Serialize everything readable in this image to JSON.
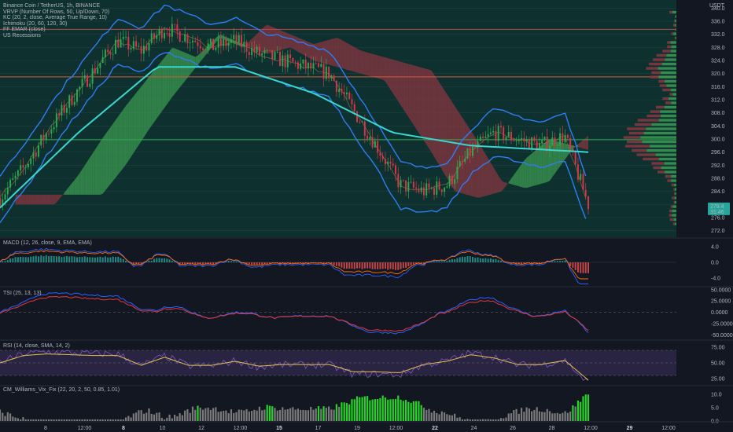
{
  "chart_data": {
    "type": "line",
    "title": "Binance Coin / TetherUS, 1h, BINANCE",
    "currency": "USDT",
    "legend": [
      "VRVP (Number Of Rows, 50, Up/Down, 70)",
      "KC (20, 2, close, Average True Range, 10)",
      "Ichimoku (20, 60, 120, 30)",
      "FF EMAR (close)",
      "US Recessions"
    ],
    "ylim": [
      270,
      342
    ],
    "y_ticks": [
      "340.0",
      "336.0",
      "332.0",
      "328.0",
      "324.0",
      "320.0",
      "316.0",
      "312.0",
      "308.0",
      "304.0",
      "300.0",
      "296.0",
      "292.0",
      "288.0",
      "284.0",
      "280.0",
      "276.0",
      "272.0"
    ],
    "x_ticks": [
      {
        "label": "8",
        "major": false
      },
      {
        "label": "12:00",
        "major": false
      },
      {
        "label": "8",
        "major": true
      },
      {
        "label": "10",
        "major": false
      },
      {
        "label": "12",
        "major": false
      },
      {
        "label": "12:00",
        "major": false
      },
      {
        "label": "15",
        "major": true
      },
      {
        "label": "17",
        "major": false
      },
      {
        "label": "19",
        "major": false
      },
      {
        "label": "12:00",
        "major": false
      },
      {
        "label": "22",
        "major": true
      },
      {
        "label": "24",
        "major": false
      },
      {
        "label": "26",
        "major": false
      },
      {
        "label": "28",
        "major": false
      },
      {
        "label": "12:00",
        "major": false
      },
      {
        "label": "29",
        "major": true
      },
      {
        "label": "12:00",
        "major": false
      }
    ],
    "horizontal_levels": [
      {
        "value": 333.5,
        "color": "#b24a4a"
      },
      {
        "value": 319.0,
        "color": "#d45a3a"
      },
      {
        "value": 299.8,
        "color": "#2ea84f"
      }
    ],
    "price": {
      "x": [
        0,
        6,
        12,
        18,
        24,
        30,
        36,
        42,
        48,
        54,
        60,
        66,
        72,
        78,
        84,
        90,
        96,
        102,
        108,
        114,
        120,
        126,
        132,
        138,
        144,
        150
      ],
      "close": [
        282,
        291,
        302,
        312,
        321,
        330,
        327,
        334,
        331,
        328,
        330,
        326,
        324,
        322,
        320,
        309,
        298,
        286,
        284,
        286,
        296,
        302,
        300,
        298,
        301,
        280
      ]
    },
    "ema": {
      "x": [
        0,
        20,
        40,
        60,
        80,
        100,
        120,
        150
      ],
      "values": [
        279,
        302,
        322,
        322,
        314,
        302,
        298,
        296
      ]
    },
    "last_price": "279.4",
    "countdown": "31:46",
    "panels": [
      {
        "label": "MACD (12, 26, close, 9, EMA, EMA)",
        "ticks": [
          "4.0",
          "0.0",
          "-4.0"
        ],
        "ylim": [
          -6,
          6
        ]
      },
      {
        "label": "TSI (25, 13, 13)",
        "ticks": [
          "50.0000",
          "25.0000",
          "0.0000",
          "-25.0000",
          "-50.0000"
        ],
        "ylim": [
          -60,
          55
        ]
      },
      {
        "label": "RSI (14, close, SMA, 14, 2)",
        "ticks": [
          "75.00",
          "50.00",
          "25.00"
        ],
        "ylim": [
          15,
          85
        ]
      },
      {
        "label": "CM_Williams_Vix_Fix (22, 20, 2, 50, 0.85, 1.01)",
        "ticks": [
          "10.0",
          "5.0",
          "0.0"
        ],
        "ylim": [
          0,
          13
        ]
      }
    ]
  },
  "colors": {
    "background": "#131722",
    "main_pane": "#0e3130",
    "up": "#2ea84f",
    "down": "#d8344a",
    "keltner": "#2f7cf6",
    "ema": "#3ad6d0",
    "cloud_green": "#3c9a52",
    "cloud_red": "#8a3640",
    "rsi_band": "#3b2d5a",
    "rsi_line": "#7e57c2",
    "rsi_sma": "#e4c04a",
    "vix_green": "#25d426",
    "vix_gray": "#7a7a7a",
    "tsi_blue": "#2962ff",
    "tsi_red": "#e5373a"
  }
}
